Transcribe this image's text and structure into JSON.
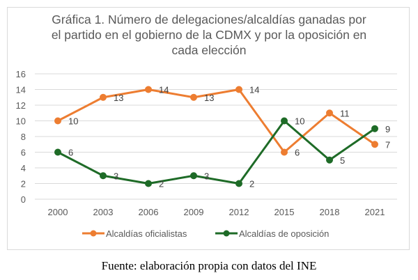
{
  "chart_data": {
    "type": "line",
    "title": "Gráfica 1. Número de delegaciones/alcaldías ganadas por el partido en el gobierno de la CDMX y por la oposición en cada elección",
    "title_lines": [
      "Gráfica 1. Número de delegaciones/alcaldías ganadas por",
      "el partido en el gobierno de la CDMX y por la oposición en",
      "cada elección"
    ],
    "xlabel": "",
    "ylabel": "",
    "categories": [
      "2000",
      "2003",
      "2006",
      "2009",
      "2012",
      "2015",
      "2018",
      "2021"
    ],
    "ylim": [
      0,
      16
    ],
    "yticks": [
      0,
      2,
      4,
      6,
      8,
      10,
      12,
      14,
      16
    ],
    "grid": true,
    "legend_position": "bottom",
    "series": [
      {
        "name": "Alcaldías oficialistas",
        "color": "#ed7d31",
        "values": [
          10,
          13,
          14,
          13,
          14,
          6,
          11,
          7
        ]
      },
      {
        "name": "Alcaldías de oposición",
        "color": "#1e6b27",
        "values": [
          6,
          3,
          2,
          3,
          2,
          10,
          5,
          9
        ]
      }
    ],
    "data_labels": true
  },
  "source": "Fuente: elaboración propia con datos del INE"
}
